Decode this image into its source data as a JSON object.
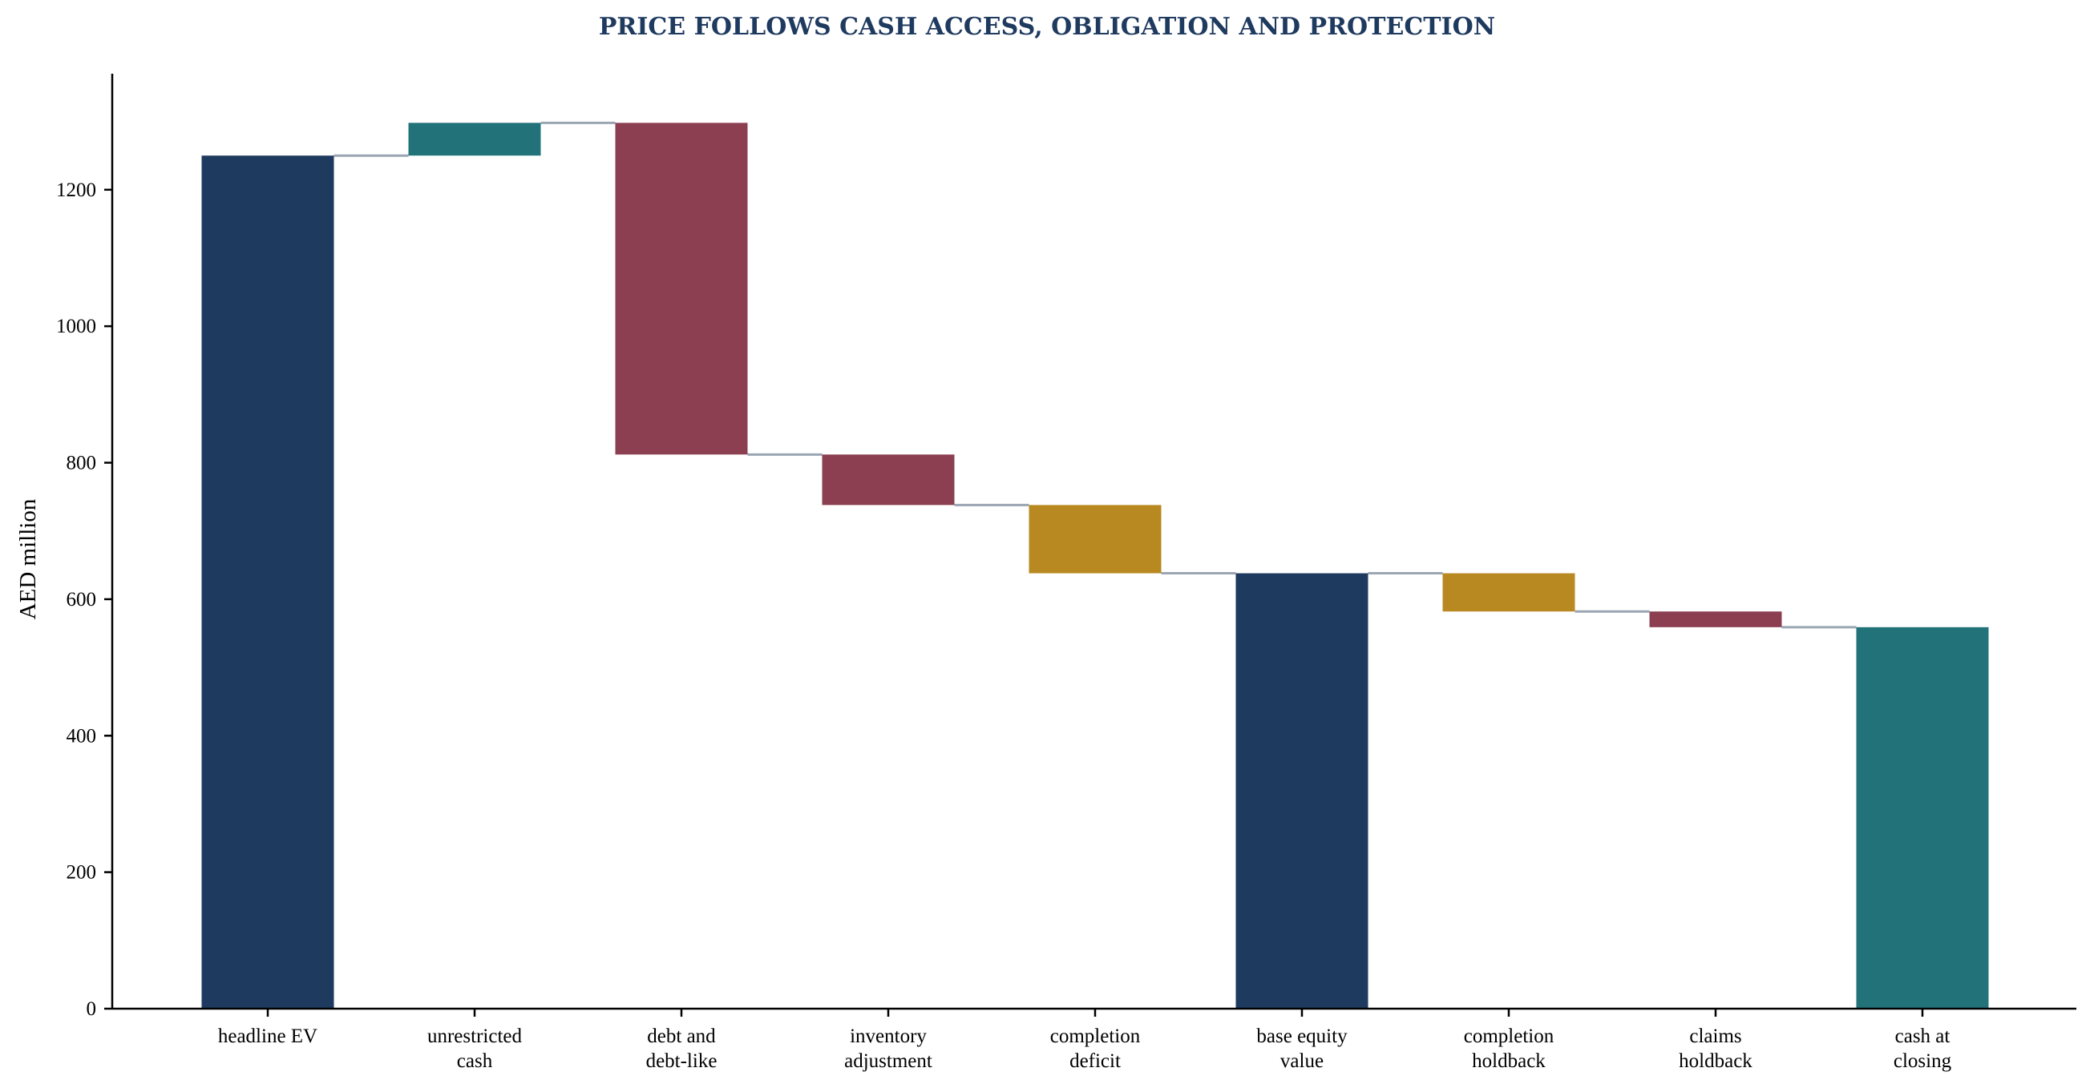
{
  "chart_data": {
    "type": "bar",
    "subtype": "waterfall",
    "title": "PRICE FOLLOWS CASH ACCESS, OBLIGATION AND PROTECTION",
    "xlabel": "",
    "ylabel": "AED million",
    "ylim": [
      0,
      1370
    ],
    "yticks": [
      0,
      200,
      400,
      600,
      800,
      1000,
      1200
    ],
    "grid": false,
    "legend": "none",
    "categories": [
      [
        "headline EV"
      ],
      [
        "unrestricted",
        "cash"
      ],
      [
        "debt and",
        "debt-like"
      ],
      [
        "inventory",
        "adjustment"
      ],
      [
        "completion",
        "deficit"
      ],
      [
        "base equity",
        "value"
      ],
      [
        "completion",
        "holdback"
      ],
      [
        "claims",
        "holdback"
      ],
      [
        "cash at",
        "closing"
      ]
    ],
    "steps": [
      {
        "kind": "total",
        "value": 1250,
        "color": "#1f3a5f"
      },
      {
        "kind": "delta",
        "value": 48,
        "color": "#22727a"
      },
      {
        "kind": "delta",
        "value": -486,
        "color": "#8b3f51"
      },
      {
        "kind": "delta",
        "value": -74,
        "color": "#8b3f51"
      },
      {
        "kind": "delta",
        "value": -100,
        "color": "#b88921"
      },
      {
        "kind": "total",
        "value": 638,
        "color": "#1f3a5f"
      },
      {
        "kind": "delta",
        "value": -56,
        "color": "#b88921"
      },
      {
        "kind": "delta",
        "value": -23,
        "color": "#8b3f51"
      },
      {
        "kind": "total",
        "value": 559,
        "color": "#22727a"
      }
    ]
  }
}
